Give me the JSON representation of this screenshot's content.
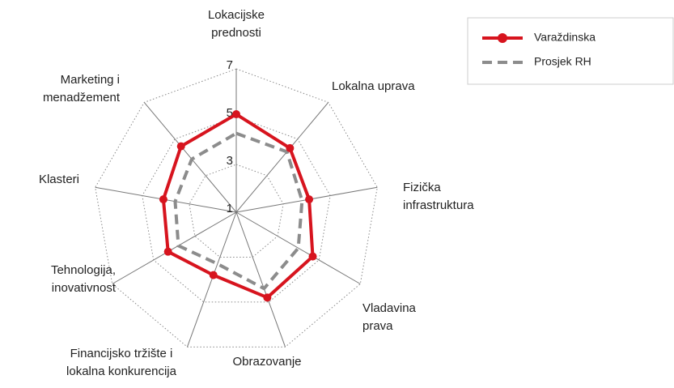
{
  "chart_data": {
    "type": "radar",
    "categories": [
      [
        "Lokacijske",
        "prednosti"
      ],
      [
        "Lokalna uprava"
      ],
      [
        "Fizička",
        "infrastruktura"
      ],
      [
        "Vladavina",
        "prava"
      ],
      [
        "Obrazovanje"
      ],
      [
        "Financijsko tržište i",
        "lokalna konkurencija"
      ],
      [
        "Tehnologija,",
        "inovativnost"
      ],
      [
        "Klasteri"
      ],
      [
        "Marketing i",
        "menadžement"
      ]
    ],
    "series": [
      {
        "name": "Varaždinska",
        "color": "#d7141e",
        "values": [
          5.1,
          4.5,
          4.1,
          4.7,
          4.8,
          3.8,
          4.3,
          4.1,
          4.6
        ]
      },
      {
        "name": "Prosjek RH",
        "color": "#8c8c8c",
        "values": [
          4.3,
          4.3,
          3.8,
          4.0,
          4.4,
          3.3,
          3.8,
          3.6,
          3.9
        ]
      }
    ],
    "rlim": [
      1,
      7
    ],
    "rticks": [
      1,
      3,
      5,
      7
    ],
    "grid": true,
    "legend": "top-right"
  }
}
